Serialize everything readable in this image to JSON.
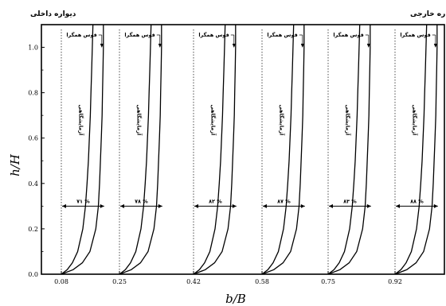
{
  "wall_labels": {
    "inner": "دیواره داخلی",
    "outer": "دیواره خارجی"
  },
  "chart_data": {
    "type": "line",
    "xlabel": "b/B",
    "ylabel": "h/H",
    "ylim": [
      0,
      1.1
    ],
    "yticks": [
      "0.0",
      "0.2",
      "0.4",
      "0.6",
      "0.8",
      "1.0"
    ],
    "xticks": [
      "0.08",
      "0.25",
      "0.42",
      "0.58",
      "0.75",
      "0.92"
    ],
    "grid": false,
    "legend": "none",
    "curve_labels": {
      "isovel": "قوس همگرا",
      "experimental": "آزمایشگاهی"
    },
    "panels": [
      {
        "x_position": "0.08",
        "percent_label": "٧١ %"
      },
      {
        "x_position": "0.25",
        "percent_label": "٧٨ %"
      },
      {
        "x_position": "0.42",
        "percent_label": "٨٢ %"
      },
      {
        "x_position": "0.58",
        "percent_label": "٨٧ %"
      },
      {
        "x_position": "0.75",
        "percent_label": "٨٣ %"
      },
      {
        "x_position": "0.92",
        "percent_label": "٨٨ %"
      }
    ],
    "profiles": {
      "h_over_H": [
        0.0,
        0.02,
        0.05,
        0.1,
        0.2,
        0.3,
        0.4,
        0.5,
        0.6,
        0.7,
        0.8,
        0.9,
        1.0,
        1.1
      ],
      "experimental_shape": [
        0.0,
        0.18,
        0.34,
        0.5,
        0.66,
        0.74,
        0.79,
        0.83,
        0.86,
        0.89,
        0.91,
        0.93,
        0.95,
        0.97
      ],
      "isovel_shape": [
        0.0,
        0.28,
        0.5,
        0.68,
        0.82,
        0.88,
        0.91,
        0.93,
        0.95,
        0.97,
        0.98,
        0.99,
        1.0,
        1.0
      ]
    }
  }
}
